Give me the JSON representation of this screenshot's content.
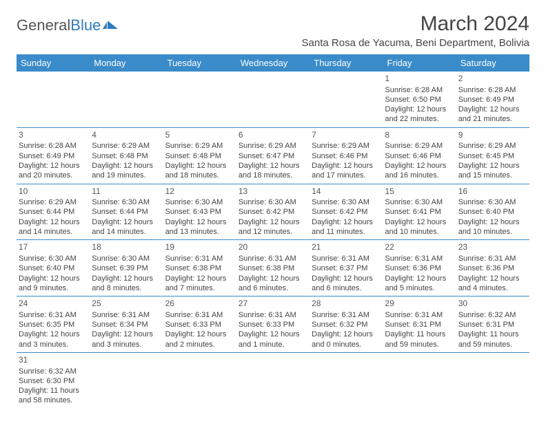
{
  "logo": {
    "text1": "General",
    "text2": "Blue"
  },
  "title": "March 2024",
  "location": "Santa Rosa de Yacuma, Beni Department, Bolivia",
  "colors": {
    "header_bg": "#3a8bc9",
    "header_text": "#ffffff",
    "border": "#3a8bc9",
    "text": "#444444",
    "logo_gray": "#555555",
    "logo_blue": "#2f7bbf",
    "page_bg": "#ffffff"
  },
  "columns": [
    "Sunday",
    "Monday",
    "Tuesday",
    "Wednesday",
    "Thursday",
    "Friday",
    "Saturday"
  ],
  "weeks": [
    [
      null,
      null,
      null,
      null,
      null,
      {
        "d": "1",
        "sr": "6:28 AM",
        "ss": "6:50 PM",
        "dl": "12 hours and 22 minutes."
      },
      {
        "d": "2",
        "sr": "6:28 AM",
        "ss": "6:49 PM",
        "dl": "12 hours and 21 minutes."
      }
    ],
    [
      {
        "d": "3",
        "sr": "6:28 AM",
        "ss": "6:49 PM",
        "dl": "12 hours and 20 minutes."
      },
      {
        "d": "4",
        "sr": "6:29 AM",
        "ss": "6:48 PM",
        "dl": "12 hours and 19 minutes."
      },
      {
        "d": "5",
        "sr": "6:29 AM",
        "ss": "6:48 PM",
        "dl": "12 hours and 18 minutes."
      },
      {
        "d": "6",
        "sr": "6:29 AM",
        "ss": "6:47 PM",
        "dl": "12 hours and 18 minutes."
      },
      {
        "d": "7",
        "sr": "6:29 AM",
        "ss": "6:46 PM",
        "dl": "12 hours and 17 minutes."
      },
      {
        "d": "8",
        "sr": "6:29 AM",
        "ss": "6:46 PM",
        "dl": "12 hours and 16 minutes."
      },
      {
        "d": "9",
        "sr": "6:29 AM",
        "ss": "6:45 PM",
        "dl": "12 hours and 15 minutes."
      }
    ],
    [
      {
        "d": "10",
        "sr": "6:29 AM",
        "ss": "6:44 PM",
        "dl": "12 hours and 14 minutes."
      },
      {
        "d": "11",
        "sr": "6:30 AM",
        "ss": "6:44 PM",
        "dl": "12 hours and 14 minutes."
      },
      {
        "d": "12",
        "sr": "6:30 AM",
        "ss": "6:43 PM",
        "dl": "12 hours and 13 minutes."
      },
      {
        "d": "13",
        "sr": "6:30 AM",
        "ss": "6:42 PM",
        "dl": "12 hours and 12 minutes."
      },
      {
        "d": "14",
        "sr": "6:30 AM",
        "ss": "6:42 PM",
        "dl": "12 hours and 11 minutes."
      },
      {
        "d": "15",
        "sr": "6:30 AM",
        "ss": "6:41 PM",
        "dl": "12 hours and 10 minutes."
      },
      {
        "d": "16",
        "sr": "6:30 AM",
        "ss": "6:40 PM",
        "dl": "12 hours and 10 minutes."
      }
    ],
    [
      {
        "d": "17",
        "sr": "6:30 AM",
        "ss": "6:40 PM",
        "dl": "12 hours and 9 minutes."
      },
      {
        "d": "18",
        "sr": "6:30 AM",
        "ss": "6:39 PM",
        "dl": "12 hours and 8 minutes."
      },
      {
        "d": "19",
        "sr": "6:31 AM",
        "ss": "6:38 PM",
        "dl": "12 hours and 7 minutes."
      },
      {
        "d": "20",
        "sr": "6:31 AM",
        "ss": "6:38 PM",
        "dl": "12 hours and 6 minutes."
      },
      {
        "d": "21",
        "sr": "6:31 AM",
        "ss": "6:37 PM",
        "dl": "12 hours and 6 minutes."
      },
      {
        "d": "22",
        "sr": "6:31 AM",
        "ss": "6:36 PM",
        "dl": "12 hours and 5 minutes."
      },
      {
        "d": "23",
        "sr": "6:31 AM",
        "ss": "6:36 PM",
        "dl": "12 hours and 4 minutes."
      }
    ],
    [
      {
        "d": "24",
        "sr": "6:31 AM",
        "ss": "6:35 PM",
        "dl": "12 hours and 3 minutes."
      },
      {
        "d": "25",
        "sr": "6:31 AM",
        "ss": "6:34 PM",
        "dl": "12 hours and 3 minutes."
      },
      {
        "d": "26",
        "sr": "6:31 AM",
        "ss": "6:33 PM",
        "dl": "12 hours and 2 minutes."
      },
      {
        "d": "27",
        "sr": "6:31 AM",
        "ss": "6:33 PM",
        "dl": "12 hours and 1 minute."
      },
      {
        "d": "28",
        "sr": "6:31 AM",
        "ss": "6:32 PM",
        "dl": "12 hours and 0 minutes."
      },
      {
        "d": "29",
        "sr": "6:31 AM",
        "ss": "6:31 PM",
        "dl": "11 hours and 59 minutes."
      },
      {
        "d": "30",
        "sr": "6:32 AM",
        "ss": "6:31 PM",
        "dl": "11 hours and 59 minutes."
      }
    ],
    [
      {
        "d": "31",
        "sr": "6:32 AM",
        "ss": "6:30 PM",
        "dl": "11 hours and 58 minutes."
      },
      null,
      null,
      null,
      null,
      null,
      null
    ]
  ],
  "labels": {
    "sunrise_prefix": "Sunrise: ",
    "sunset_prefix": "Sunset: ",
    "daylight_prefix": "Daylight: "
  }
}
